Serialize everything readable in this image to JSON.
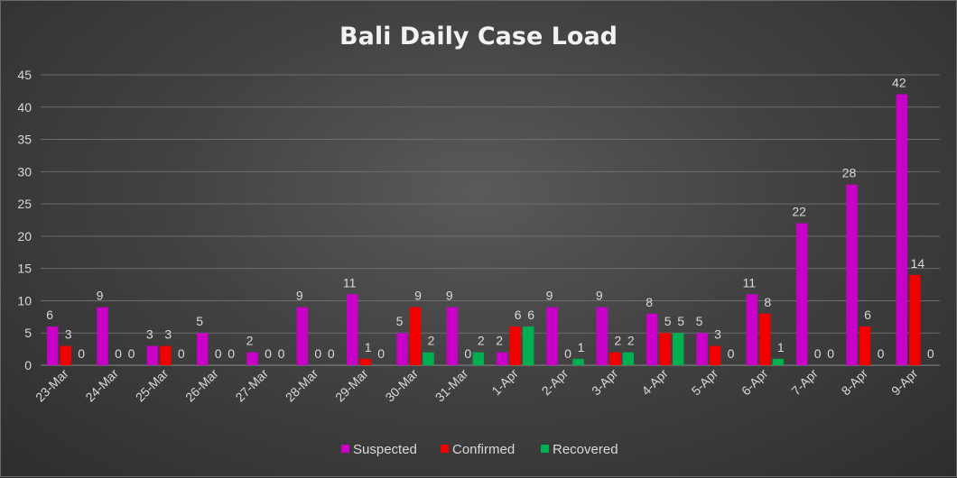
{
  "chart_data": {
    "type": "bar",
    "title": "Bali Daily Case Load",
    "xlabel": "",
    "ylabel": "",
    "ylim": [
      0,
      45
    ],
    "yticks": [
      0,
      5,
      10,
      15,
      20,
      25,
      30,
      35,
      40,
      45
    ],
    "grid": true,
    "legend_position": "bottom",
    "categories": [
      "23-Mar",
      "24-Mar",
      "25-Mar",
      "26-Mar",
      "27-Mar",
      "28-Mar",
      "29-Mar",
      "30-Mar",
      "31-Mar",
      "1-Apr",
      "2-Apr",
      "3-Apr",
      "4-Apr",
      "5-Apr",
      "6-Apr",
      "7-Apr",
      "8-Apr",
      "9-Apr"
    ],
    "series": [
      {
        "name": "Suspected",
        "color": "#c800c8",
        "values": [
          6,
          9,
          3,
          5,
          2,
          9,
          11,
          5,
          9,
          2,
          9,
          9,
          8,
          5,
          11,
          22,
          28,
          42
        ]
      },
      {
        "name": "Confirmed",
        "color": "#f20000",
        "values": [
          3,
          0,
          3,
          0,
          0,
          0,
          1,
          9,
          0,
          6,
          0,
          2,
          5,
          3,
          8,
          0,
          6,
          14
        ]
      },
      {
        "name": "Recovered",
        "color": "#00b050",
        "values": [
          0,
          0,
          0,
          0,
          0,
          0,
          0,
          2,
          2,
          6,
          1,
          2,
          5,
          0,
          1,
          0,
          0,
          0
        ]
      }
    ]
  }
}
